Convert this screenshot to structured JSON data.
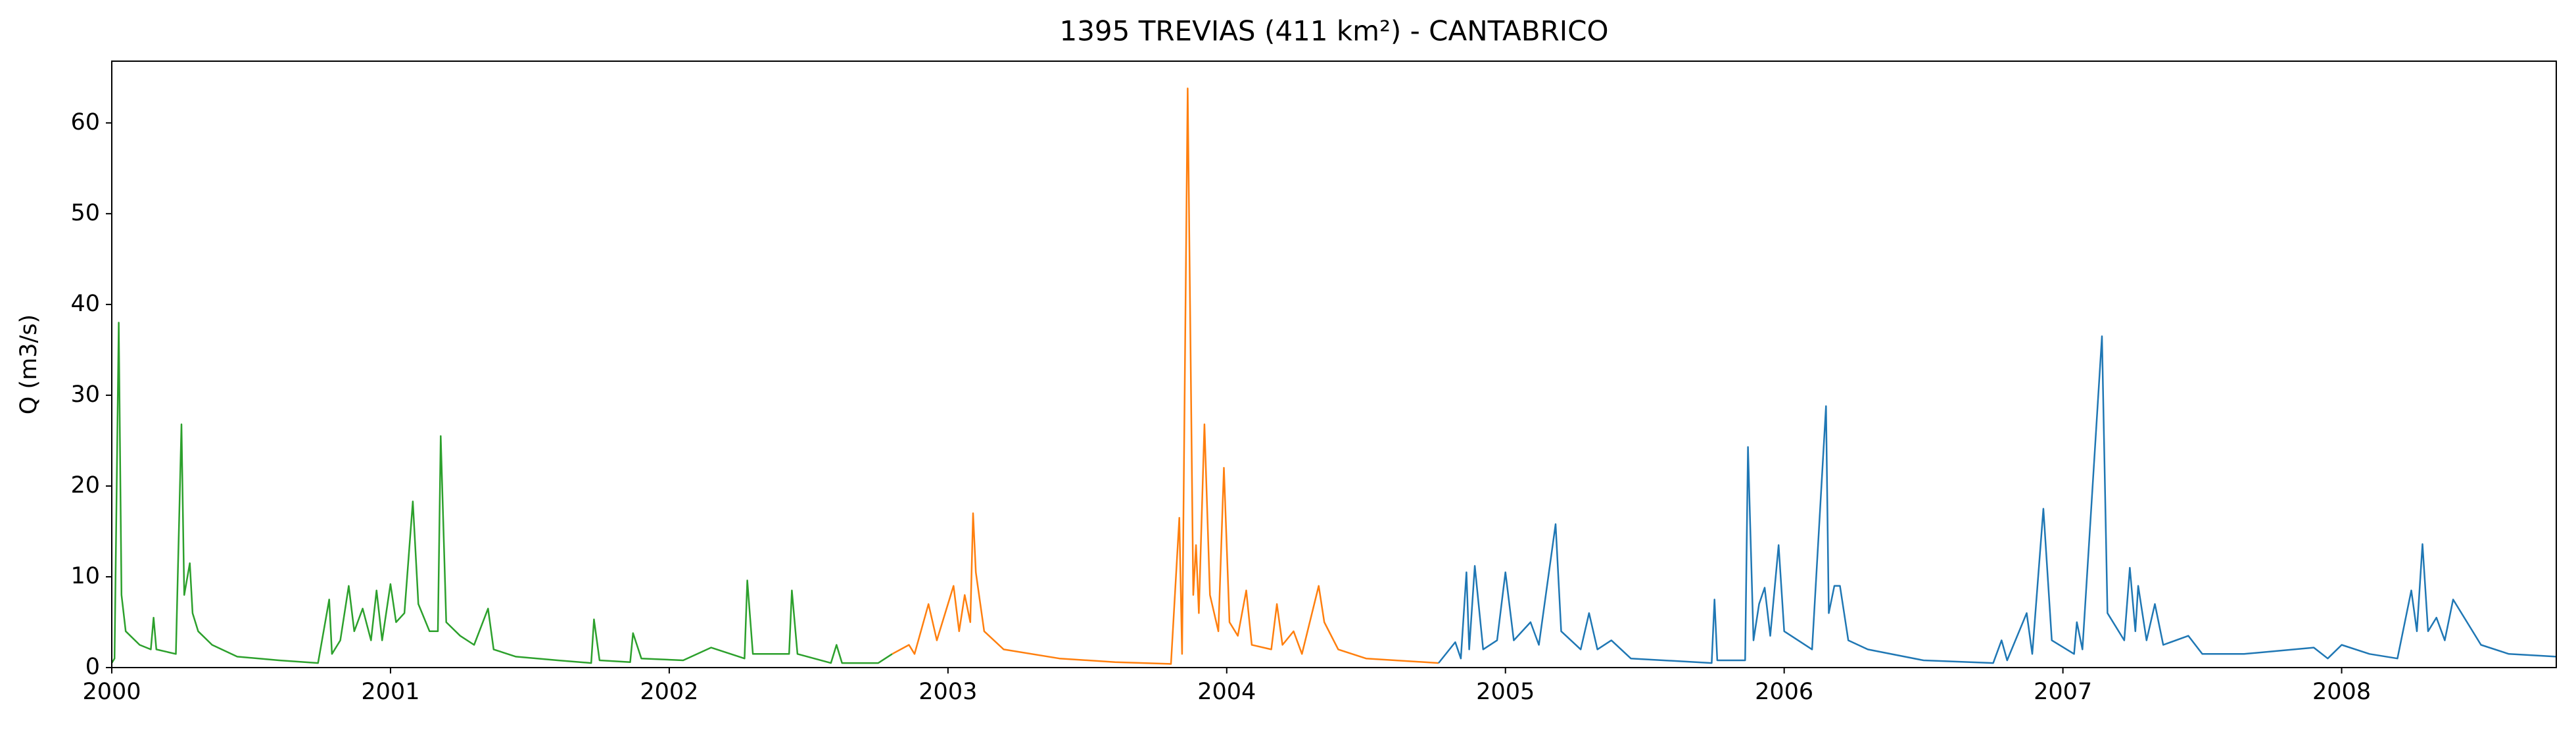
{
  "chart_data": {
    "type": "line",
    "title": "1395 TREVIAS (411 km²) - CANTABRICO",
    "y_label": "Q (m3/s)",
    "xlim": [
      2000,
      2008.77
    ],
    "xticks": [
      2000,
      2001,
      2002,
      2003,
      2004,
      2005,
      2006,
      2007,
      2008
    ],
    "ylim": [
      0,
      66.8
    ],
    "yticks": [
      0,
      10,
      20,
      30,
      40,
      50,
      60
    ],
    "grid": false,
    "series": [
      {
        "color": "#2ca02c",
        "x": [
          2000.0,
          2000.01,
          2000.025,
          2000.035,
          2000.05,
          2000.1,
          2000.14,
          2000.15,
          2000.16,
          2000.23,
          2000.25,
          2000.26,
          2000.28,
          2000.29,
          2000.31,
          2000.36,
          2000.45,
          2000.6,
          2000.74,
          2000.78,
          2000.79,
          2000.82,
          2000.85,
          2000.87,
          2000.9,
          2000.93,
          2000.95,
          2000.97,
          2001.0,
          2001.02,
          2001.05,
          2001.08,
          2001.1,
          2001.14,
          2001.17,
          2001.18,
          2001.2,
          2001.25,
          2001.3,
          2001.35,
          2001.37,
          2001.45,
          2001.6,
          2001.72,
          2001.73,
          2001.75,
          2001.86,
          2001.87,
          2001.9,
          2002.05,
          2002.15,
          2002.27,
          2002.28,
          2002.3,
          2002.43,
          2002.44,
          2002.46,
          2002.58,
          2002.6,
          2002.62,
          2002.75,
          2002.8
        ],
        "values": [
          0.5,
          1,
          38,
          8,
          4,
          2.5,
          2,
          5.5,
          2,
          1.5,
          26.8,
          8,
          11.5,
          6,
          4,
          2.5,
          1.2,
          0.8,
          0.5,
          7.5,
          1.5,
          3,
          9,
          4,
          6.5,
          3,
          8.5,
          3,
          9.2,
          5,
          6,
          18.3,
          7,
          4,
          4,
          25.5,
          5,
          3.5,
          2.5,
          6.5,
          2,
          1.2,
          0.8,
          0.5,
          5.3,
          0.8,
          0.6,
          3.8,
          1,
          0.8,
          2.2,
          1,
          9.6,
          1.5,
          1.5,
          8.5,
          1.5,
          0.5,
          2.5,
          0.5,
          0.5,
          1.5
        ]
      },
      {
        "color": "#ff7f0e",
        "x": [
          2002.8,
          2002.86,
          2002.88,
          2002.93,
          2002.96,
          2003.02,
          2003.04,
          2003.06,
          2003.08,
          2003.09,
          2003.1,
          2003.13,
          2003.2,
          2003.4,
          2003.6,
          2003.8,
          2003.83,
          2003.84,
          2003.86,
          2003.88,
          2003.89,
          2003.9,
          2003.92,
          2003.94,
          2003.97,
          2003.99,
          2004.01,
          2004.04,
          2004.07,
          2004.09,
          2004.16,
          2004.18,
          2004.2,
          2004.24,
          2004.27,
          2004.33,
          2004.35,
          2004.4,
          2004.5,
          2004.76
        ],
        "values": [
          1.5,
          2.5,
          1.5,
          7,
          3,
          9,
          4,
          8,
          5,
          17,
          10.5,
          4,
          2,
          1,
          0.6,
          0.4,
          16.5,
          1.5,
          63.8,
          8,
          13.5,
          6,
          26.8,
          8,
          4,
          22,
          5,
          3.5,
          8.5,
          2.5,
          2,
          7,
          2.5,
          4,
          1.5,
          9,
          5,
          2,
          1,
          0.5
        ]
      },
      {
        "color": "#1f77b4",
        "x": [
          2004.76,
          2004.82,
          2004.84,
          2004.86,
          2004.87,
          2004.89,
          2004.92,
          2004.97,
          2005.0,
          2005.03,
          2005.09,
          2005.12,
          2005.18,
          2005.2,
          2005.27,
          2005.3,
          2005.33,
          2005.38,
          2005.45,
          2005.74,
          2005.75,
          2005.76,
          2005.86,
          2005.87,
          2005.89,
          2005.91,
          2005.93,
          2005.95,
          2005.98,
          2006.0,
          2006.1,
          2006.15,
          2006.16,
          2006.18,
          2006.2,
          2006.23,
          2006.3,
          2006.5,
          2006.75,
          2006.78,
          2006.8,
          2006.87,
          2006.89,
          2006.93,
          2006.96,
          2007.04,
          2007.05,
          2007.07,
          2007.14,
          2007.16,
          2007.22,
          2007.24,
          2007.26,
          2007.27,
          2007.3,
          2007.33,
          2007.36,
          2007.45,
          2007.5,
          2007.65,
          2007.9,
          2007.95,
          2008.0,
          2008.1,
          2008.2,
          2008.25,
          2008.27,
          2008.29,
          2008.31,
          2008.34,
          2008.37,
          2008.4,
          2008.45,
          2008.5,
          2008.6,
          2008.77
        ],
        "values": [
          0.5,
          2.8,
          1,
          10.5,
          2,
          11.2,
          2,
          3,
          10.5,
          3,
          5,
          2.5,
          15.8,
          4,
          2,
          6,
          2,
          3,
          1,
          0.5,
          7.5,
          0.8,
          0.8,
          24.3,
          3,
          7,
          8.8,
          3.5,
          13.5,
          4,
          2,
          28.8,
          6,
          9,
          9,
          3,
          2,
          0.8,
          0.5,
          3,
          0.8,
          6,
          1.5,
          17.5,
          3,
          1.5,
          5,
          2,
          36.5,
          6,
          3,
          11,
          4,
          9,
          3,
          7,
          2.5,
          3.5,
          1.5,
          1.5,
          2.2,
          1,
          2.5,
          1.5,
          1,
          8.5,
          4,
          13.6,
          4,
          5.5,
          3,
          7.5,
          5,
          2.5,
          1.5,
          1.2
        ]
      }
    ]
  }
}
